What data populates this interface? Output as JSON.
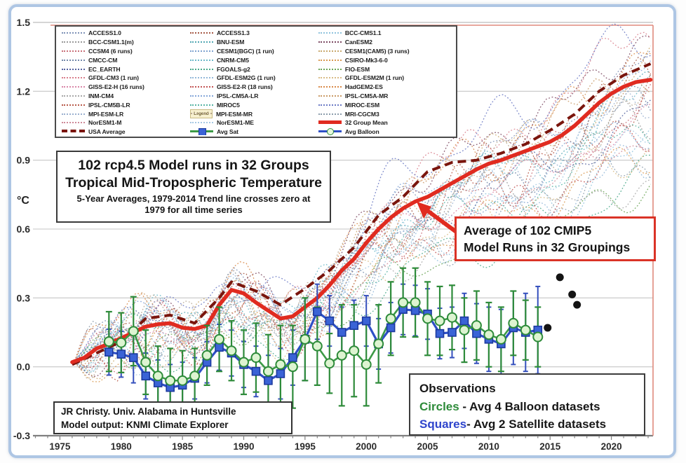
{
  "title_box": {
    "line1": "102 rcp4.5 Model runs in 32 Groups",
    "line2": "Tropical Mid-Tropospheric Temperature",
    "line3": "5-Year Averages, 1979-2014 Trend line crosses zero at 1979 for all time series"
  },
  "cmip5_box": {
    "line1": "Average of 102 CMIP5",
    "line2": "Model Runs in 32 Groupings"
  },
  "observations_box": {
    "heading": "Observations",
    "circles_label": "Circles",
    "circles_text": " - Avg 4 Balloon datasets",
    "squares_label": "Squares",
    "squares_text": "- Avg 2 Satellite datasets"
  },
  "credit_box": {
    "line1": "JR Christy. Univ. Alabama in Huntsville",
    "line2": "Model output: KNMI Climate Explorer"
  },
  "legend": {
    "artifact_label": "Legend",
    "entries": [
      {
        "label": "ACCESS1.0",
        "swatch": "dotted",
        "color": "#7f93b8"
      },
      {
        "label": "ACCESS1.3",
        "swatch": "dotted",
        "color": "#a65a47"
      },
      {
        "label": "BCC-CMS1.1",
        "swatch": "dotted",
        "color": "#8fc3dd"
      },
      {
        "label": "BCC-CSM1.1(m)",
        "swatch": "dotted",
        "color": "#9a9a9a"
      },
      {
        "label": "BNU-ESM",
        "swatch": "dotted",
        "color": "#53a8b4"
      },
      {
        "label": "CanESM2",
        "swatch": "dotted",
        "color": "#7d4a63"
      },
      {
        "label": "CCSM4 (6 runs)",
        "swatch": "dotted",
        "color": "#c96f78"
      },
      {
        "label": "CESM1(BGC) (1 run)",
        "swatch": "dotted",
        "color": "#7fa3cf"
      },
      {
        "label": "CESM1(CAM5) (3 runs)",
        "swatch": "dotted",
        "color": "#c9a96e"
      },
      {
        "label": "CMCC-CM",
        "swatch": "dotted",
        "color": "#7287a8"
      },
      {
        "label": "CNRM-CM5",
        "swatch": "dotted",
        "color": "#6cb9c9"
      },
      {
        "label": "CSIRO-Mk3-6-0",
        "swatch": "dotted",
        "color": "#d9984f"
      },
      {
        "label": "EC_EARTH",
        "swatch": "dotted",
        "color": "#54629e"
      },
      {
        "label": "FGOALS-g2",
        "swatch": "dotted",
        "color": "#4aa98a"
      },
      {
        "label": "FIO-ESM",
        "swatch": "dotted",
        "color": "#6aa455"
      },
      {
        "label": "GFDL-CM3 (1 run)",
        "swatch": "dotted",
        "color": "#d97f8c"
      },
      {
        "label": "GFDL-ESM2G (1 run)",
        "swatch": "dotted",
        "color": "#93b8d9"
      },
      {
        "label": "GFDL-ESM2M (1 run)",
        "swatch": "dotted",
        "color": "#d9bc85"
      },
      {
        "label": "GISS-E2-H (16 runs)",
        "swatch": "dotted",
        "color": "#d987a8"
      },
      {
        "label": "GISS-E2-R (18 runs)",
        "swatch": "dotted",
        "color": "#c25454"
      },
      {
        "label": "HadGEM2-ES",
        "swatch": "dotted",
        "color": "#d98a49"
      },
      {
        "label": "INM-CM4",
        "swatch": "dotted",
        "color": "#a8a8a8"
      },
      {
        "label": "IPSL-CM5A-LR",
        "swatch": "dotted",
        "color": "#85a6d9"
      },
      {
        "label": "IPSL-CM5A-MR",
        "swatch": "dotted",
        "color": "#c99a66"
      },
      {
        "label": "IPSL-CM5B-LR",
        "swatch": "dotted",
        "color": "#b85a49"
      },
      {
        "label": "MIROC5",
        "swatch": "dotted",
        "color": "#56b4a4"
      },
      {
        "label": "MIROC-ESM",
        "swatch": "dotted",
        "color": "#6a79c4"
      },
      {
        "label": "MPI-ESM-LR",
        "swatch": "dotted",
        "color": "#9ab0cf"
      },
      {
        "label": "MPI-ESM-MR",
        "swatch": "artifact",
        "color": "#b8a893"
      },
      {
        "label": "MRI-CGCM3",
        "swatch": "dotted",
        "color": "#8b9cab"
      },
      {
        "label": "NorESM1-M",
        "swatch": "dotted",
        "color": "#cf8a99"
      },
      {
        "label": "NorESM1-ME",
        "swatch": "dotted",
        "color": "#a6c9e4"
      },
      {
        "label": "32 Group Mean",
        "swatch": "mean",
        "color": "#e02b20"
      },
      {
        "label": "USA Average",
        "swatch": "usa",
        "color": "#7a150d"
      },
      {
        "label": "Avg Sat",
        "swatch": "sat",
        "color": "#3a63d6"
      },
      {
        "label": "Avg Balloon",
        "swatch": "balloon",
        "color": "#2e4fc6"
      }
    ]
  },
  "chart_data": {
    "type": "line",
    "title": "102 rcp4.5 Model runs in 32 Groups - Tropical Mid-Tropospheric Temperature",
    "xlabel": "",
    "ylabel": "°C",
    "axes": {
      "x_range": [
        1972.8,
        2023.4
      ],
      "y_range": [
        -0.3,
        1.5
      ],
      "x_ticks": [
        1975,
        1980,
        1985,
        1990,
        1995,
        2000,
        2005,
        2010,
        2015,
        2020
      ],
      "x_minor_tick_step": 1,
      "y_ticks": [
        -0.3,
        0.0,
        0.3,
        0.6,
        0.9,
        1.2,
        1.5
      ],
      "y_tick_labels": [
        "-0.3",
        "0.0",
        "0.3",
        "0.6",
        "0.9",
        "1.2",
        "1.5"
      ],
      "y_unit": "°C",
      "grid": "horizontal"
    },
    "colors": {
      "mean": "#e02b20",
      "usa": "#7a150d",
      "sat_line": "#2e4fc6",
      "sat_fill": "#3a63d6",
      "sat_edge": "#1d3a9e",
      "sat_err": "#3550bd",
      "balloon_line": "#3c9a46",
      "balloon_fill": "#ddf4d1",
      "balloon_edge": "#2e8b3a",
      "balloon_err": "#2e8b3a",
      "black_dots": "#141414",
      "grid": "#c6c6c6",
      "axis": "#7a7a7a",
      "plot_border": "#e08a7d"
    },
    "series": {
      "group_mean_32": {
        "name": "32 Group Mean",
        "points": [
          [
            1976,
            0.02
          ],
          [
            1977,
            0.04
          ],
          [
            1978,
            0.08
          ],
          [
            1979,
            0.1
          ],
          [
            1980,
            0.125
          ],
          [
            1981,
            0.15
          ],
          [
            1982,
            0.175
          ],
          [
            1983,
            0.185
          ],
          [
            1984,
            0.19
          ],
          [
            1985,
            0.17
          ],
          [
            1986,
            0.165
          ],
          [
            1987,
            0.18
          ],
          [
            1988,
            0.27
          ],
          [
            1989,
            0.335
          ],
          [
            1990,
            0.32
          ],
          [
            1991,
            0.28
          ],
          [
            1992,
            0.245
          ],
          [
            1993,
            0.21
          ],
          [
            1994,
            0.22
          ],
          [
            1995,
            0.26
          ],
          [
            1996,
            0.3
          ],
          [
            1997,
            0.355
          ],
          [
            1998,
            0.42
          ],
          [
            1999,
            0.47
          ],
          [
            2000,
            0.54
          ],
          [
            2001,
            0.6
          ],
          [
            2002,
            0.65
          ],
          [
            2003,
            0.69
          ],
          [
            2004,
            0.72
          ],
          [
            2005,
            0.74
          ],
          [
            2006,
            0.77
          ],
          [
            2007,
            0.8
          ],
          [
            2008,
            0.83
          ],
          [
            2009,
            0.86
          ],
          [
            2010,
            0.885
          ],
          [
            2011,
            0.9
          ],
          [
            2012,
            0.92
          ],
          [
            2013,
            0.94
          ],
          [
            2014,
            0.96
          ],
          [
            2015,
            0.98
          ],
          [
            2016,
            1.01
          ],
          [
            2017,
            1.05
          ],
          [
            2018,
            1.1
          ],
          [
            2019,
            1.15
          ],
          [
            2020,
            1.19
          ],
          [
            2021,
            1.22
          ],
          [
            2022,
            1.24
          ],
          [
            2023.2,
            1.25
          ]
        ]
      },
      "usa_average": {
        "name": "USA Average",
        "points": [
          [
            1976,
            0.01
          ],
          [
            1978,
            0.06
          ],
          [
            1980,
            0.11
          ],
          [
            1982,
            0.21
          ],
          [
            1984,
            0.225
          ],
          [
            1986,
            0.19
          ],
          [
            1988,
            0.3
          ],
          [
            1989,
            0.37
          ],
          [
            1991,
            0.33
          ],
          [
            1993,
            0.27
          ],
          [
            1995,
            0.34
          ],
          [
            1997,
            0.42
          ],
          [
            1999,
            0.52
          ],
          [
            2001,
            0.66
          ],
          [
            2003,
            0.74
          ],
          [
            2005,
            0.85
          ],
          [
            2007,
            0.89
          ],
          [
            2009,
            0.9
          ],
          [
            2011,
            0.93
          ],
          [
            2013,
            0.97
          ],
          [
            2015,
            1.03
          ],
          [
            2017,
            1.1
          ],
          [
            2019,
            1.2
          ],
          [
            2021,
            1.27
          ],
          [
            2023.2,
            1.32
          ]
        ]
      },
      "avg_balloon": {
        "name": "Avg Balloon (Circles - Avg 4 Balloon datasets)",
        "years_start": 1979,
        "values": [
          0.11,
          0.105,
          0.155,
          0.02,
          -0.04,
          -0.06,
          -0.06,
          -0.04,
          0.05,
          0.12,
          0.07,
          0.02,
          0.04,
          -0.02,
          0.01,
          0.0,
          0.12,
          0.09,
          0.015,
          0.05,
          0.07,
          0.01,
          0.1,
          0.21,
          0.28,
          0.28,
          0.21,
          0.2,
          0.215,
          0.16,
          0.18,
          0.14,
          0.12,
          0.19,
          0.16,
          0.13
        ],
        "errors": [
          0.13,
          0.13,
          0.15,
          0.14,
          0.13,
          0.14,
          0.13,
          0.12,
          0.13,
          0.14,
          0.13,
          0.14,
          0.15,
          0.16,
          0.17,
          0.18,
          0.18,
          0.17,
          0.13,
          0.22,
          0.2,
          0.18,
          0.17,
          0.16,
          0.15,
          0.15,
          0.16,
          0.15,
          0.14,
          0.14,
          0.15,
          0.14,
          0.14,
          0.14,
          0.13,
          0.13
        ]
      },
      "avg_satellite": {
        "name": "Avg Sat (Squares - Avg 2 Satellite datasets)",
        "years_start": 1979,
        "values": [
          0.064,
          0.055,
          0.04,
          -0.04,
          -0.07,
          -0.09,
          -0.08,
          -0.05,
          0.02,
          0.085,
          0.06,
          0.01,
          -0.02,
          -0.06,
          -0.03,
          0.04,
          0.12,
          0.24,
          0.2,
          0.15,
          0.18,
          0.2,
          0.1,
          0.17,
          0.25,
          0.245,
          0.23,
          0.145,
          0.15,
          0.2,
          0.145,
          0.12,
          0.1,
          0.17,
          0.15,
          0.16
        ],
        "errors": [
          0.1,
          0.1,
          0.11,
          0.1,
          0.1,
          0.1,
          0.1,
          0.09,
          0.09,
          0.1,
          0.1,
          0.1,
          0.11,
          0.11,
          0.11,
          0.12,
          0.18,
          0.12,
          0.11,
          0.11,
          0.11,
          0.11,
          0.11,
          0.11,
          0.11,
          0.11,
          0.11,
          0.11,
          0.11,
          0.12,
          0.13,
          0.14,
          0.15,
          0.16,
          0.17,
          0.19
        ]
      },
      "black_dots": {
        "name": "recent observation dots",
        "points": [
          [
            2014.8,
            0.17
          ],
          [
            2015.8,
            0.39
          ],
          [
            2016.8,
            0.315
          ],
          [
            2017.2,
            0.27
          ]
        ]
      },
      "models": [
        {
          "name": "ACCESS1.0",
          "color": "#7f93b8",
          "end": 1.32,
          "seed": 1
        },
        {
          "name": "ACCESS1.3",
          "color": "#a65a47",
          "end": 1.25,
          "seed": 2
        },
        {
          "name": "BCC-CMS1.1",
          "color": "#8fc3dd",
          "end": 0.92,
          "seed": 3
        },
        {
          "name": "BCC-CSM1.1(m)",
          "color": "#9a9a9a",
          "end": 1.02,
          "seed": 4
        },
        {
          "name": "BNU-ESM",
          "color": "#53a8b4",
          "end": 1.22,
          "seed": 5
        },
        {
          "name": "CanESM2",
          "color": "#7d4a63",
          "end": 1.38,
          "seed": 6
        },
        {
          "name": "CCSM4 (6 runs)",
          "color": "#c96f78",
          "end": 1.15,
          "seed": 7
        },
        {
          "name": "CESM1(BGC) (1 run)",
          "color": "#7fa3cf",
          "end": 1.1,
          "seed": 8
        },
        {
          "name": "CESM1(CAM5) (3 runs)",
          "color": "#c9a96e",
          "end": 1.28,
          "seed": 9
        },
        {
          "name": "CMCC-CM",
          "color": "#7287a8",
          "end": 1.18,
          "seed": 10
        },
        {
          "name": "CNRM-CM5",
          "color": "#6cb9c9",
          "end": 1.12,
          "seed": 11
        },
        {
          "name": "CSIRO-Mk3-6-0",
          "color": "#d9984f",
          "end": 0.95,
          "seed": 12
        },
        {
          "name": "EC_EARTH",
          "color": "#54629e",
          "end": 1.08,
          "seed": 13
        },
        {
          "name": "FGOALS-g2",
          "color": "#4aa98a",
          "end": 0.85,
          "seed": 14
        },
        {
          "name": "FIO-ESM",
          "color": "#6aa455",
          "end": 0.8,
          "seed": 15
        },
        {
          "name": "GFDL-CM3 (1 run)",
          "color": "#d97f8c",
          "end": 1.45,
          "seed": 16
        },
        {
          "name": "GFDL-ESM2G (1 run)",
          "color": "#93b8d9",
          "end": 0.9,
          "seed": 17
        },
        {
          "name": "GFDL-ESM2M (1 run)",
          "color": "#d9bc85",
          "end": 0.98,
          "seed": 18
        },
        {
          "name": "GISS-E2-H (16 runs)",
          "color": "#d987a8",
          "end": 1.05,
          "seed": 19
        },
        {
          "name": "GISS-E2-R (18 runs)",
          "color": "#c25454",
          "end": 1.0,
          "seed": 20
        },
        {
          "name": "HadGEM2-ES",
          "color": "#d98a49",
          "end": 1.35,
          "seed": 21
        },
        {
          "name": "INM-CM4",
          "color": "#a8a8a8",
          "end": 0.76,
          "seed": 22
        },
        {
          "name": "IPSL-CM5A-LR",
          "color": "#85a6d9",
          "end": 1.3,
          "seed": 23
        },
        {
          "name": "IPSL-CM5A-MR",
          "color": "#c99a66",
          "end": 1.33,
          "seed": 24
        },
        {
          "name": "IPSL-CM5B-LR",
          "color": "#b85a49",
          "end": 1.2,
          "seed": 25
        },
        {
          "name": "MIROC5",
          "color": "#56b4a4",
          "end": 1.06,
          "seed": 26
        },
        {
          "name": "MIROC-ESM",
          "color": "#6a79c4",
          "end": 1.42,
          "seed": 27
        },
        {
          "name": "MPI-ESM-LR",
          "color": "#9ab0cf",
          "end": 1.14,
          "seed": 28
        },
        {
          "name": "MPI-ESM-MR",
          "color": "#b8a893",
          "end": 1.16,
          "seed": 29
        },
        {
          "name": "MRI-CGCM3",
          "color": "#8b9cab",
          "end": 0.88,
          "seed": 30
        },
        {
          "name": "NorESM1-M",
          "color": "#cf8a99",
          "end": 1.04,
          "seed": 31
        },
        {
          "name": "NorESM1-ME",
          "color": "#a6c9e4",
          "end": 1.09,
          "seed": 32
        }
      ]
    }
  }
}
